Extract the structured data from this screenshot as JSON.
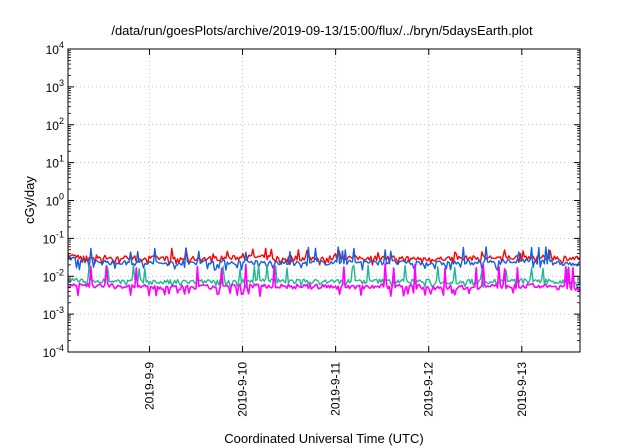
{
  "chart_data": {
    "type": "line",
    "title": "/data/run/goesPlots/archive/2019-09-13/15:00/flux/../bryn/5daysEarth.plot",
    "xlabel": "Coordinated Universal Time (UTC)",
    "ylabel": "cGy/day",
    "y_scale": "log",
    "ylim": [
      0.0001,
      10000
    ],
    "y_ticks": [
      {
        "value": 0.0001,
        "base": "10",
        "exp": "-4"
      },
      {
        "value": 0.001,
        "base": "10",
        "exp": "-3"
      },
      {
        "value": 0.01,
        "base": "10",
        "exp": "-2"
      },
      {
        "value": 0.1,
        "base": "10",
        "exp": "-1"
      },
      {
        "value": 1,
        "base": "10",
        "exp": "0"
      },
      {
        "value": 10,
        "base": "10",
        "exp": "1"
      },
      {
        "value": 100,
        "base": "10",
        "exp": "2"
      },
      {
        "value": 1000,
        "base": "10",
        "exp": "3"
      },
      {
        "value": 10000,
        "base": "10",
        "exp": "4"
      }
    ],
    "xlim": [
      "2019-09-08 03:00",
      "2019-09-13 15:00"
    ],
    "x_ticks": [
      "2019-9-9",
      "2019-9-10",
      "2019-9-11",
      "2019-9-12",
      "2019-9-13"
    ],
    "grid": true,
    "series": [
      {
        "color": "#ff0000",
        "level": 0.032,
        "spike": 0.055,
        "dip": 0.022,
        "x": [
          "2019-09-08 03:00",
          "2019-09-08 15:00",
          "2019-09-09 03:00",
          "2019-09-09 15:00",
          "2019-09-10 03:00",
          "2019-09-10 15:00",
          "2019-09-11 03:00",
          "2019-09-11 15:00",
          "2019-09-12 03:00",
          "2019-09-12 15:00",
          "2019-09-13 03:00",
          "2019-09-13 15:00"
        ],
        "values": [
          0.035,
          0.031,
          0.03,
          0.029,
          0.032,
          0.03,
          0.031,
          0.03,
          0.029,
          0.031,
          0.032,
          0.03
        ]
      },
      {
        "color": "#1060e0",
        "level": 0.024,
        "spike": 0.06,
        "dip": 0.016,
        "x": [
          "2019-09-08 03:00",
          "2019-09-08 15:00",
          "2019-09-09 03:00",
          "2019-09-09 15:00",
          "2019-09-10 03:00",
          "2019-09-10 15:00",
          "2019-09-11 03:00",
          "2019-09-11 15:00",
          "2019-09-12 03:00",
          "2019-09-12 15:00",
          "2019-09-13 03:00",
          "2019-09-13 15:00"
        ],
        "values": [
          0.028,
          0.023,
          0.022,
          0.024,
          0.023,
          0.022,
          0.024,
          0.023,
          0.022,
          0.024,
          0.025,
          0.021
        ]
      },
      {
        "color": "#20b890",
        "level": 0.0075,
        "spike": 0.02,
        "dip": 0.0055,
        "x": [
          "2019-09-08 03:00",
          "2019-09-08 15:00",
          "2019-09-09 03:00",
          "2019-09-09 15:00",
          "2019-09-10 03:00",
          "2019-09-10 15:00",
          "2019-09-11 03:00",
          "2019-09-11 15:00",
          "2019-09-12 03:00",
          "2019-09-12 15:00",
          "2019-09-13 03:00",
          "2019-09-13 15:00"
        ],
        "values": [
          0.008,
          0.0075,
          0.007,
          0.0072,
          0.0076,
          0.0074,
          0.0073,
          0.0075,
          0.0072,
          0.0074,
          0.0076,
          0.0068
        ]
      },
      {
        "color": "#ff00ff",
        "level": 0.0055,
        "spike": 0.022,
        "dip": 0.0033,
        "x": [
          "2019-09-08 03:00",
          "2019-09-08 15:00",
          "2019-09-09 03:00",
          "2019-09-09 15:00",
          "2019-09-10 03:00",
          "2019-09-10 15:00",
          "2019-09-11 03:00",
          "2019-09-11 15:00",
          "2019-09-12 03:00",
          "2019-09-12 15:00",
          "2019-09-13 03:00",
          "2019-09-13 15:00"
        ],
        "values": [
          0.006,
          0.0055,
          0.005,
          0.0052,
          0.0056,
          0.0054,
          0.0053,
          0.0055,
          0.0051,
          0.0054,
          0.0056,
          0.0048
        ]
      }
    ]
  }
}
